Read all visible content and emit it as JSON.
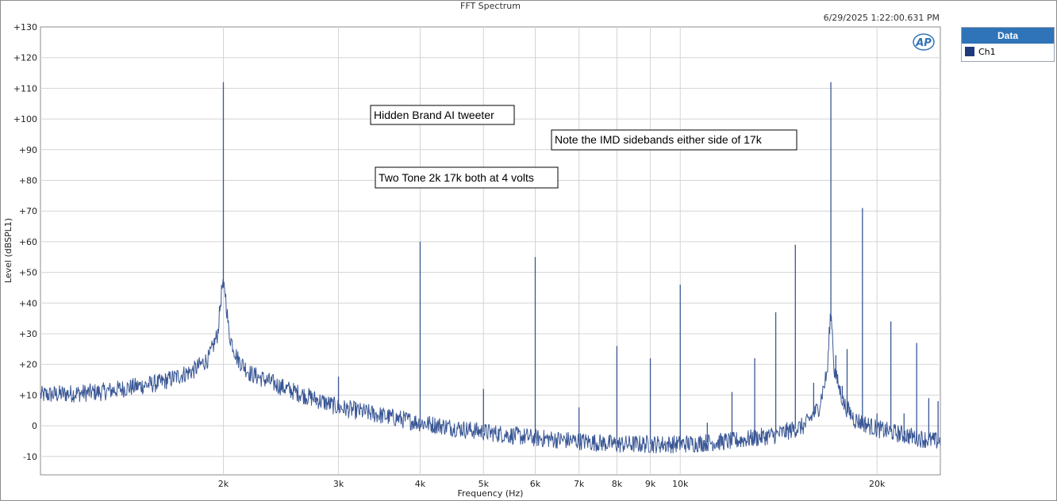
{
  "window": {
    "title": "FFT Spectrum",
    "timestamp": "6/29/2025 1:22:00.631 PM",
    "logo_text": "AP"
  },
  "legend": {
    "header": "Data",
    "items": [
      {
        "label": "Ch1",
        "color": "#1f3a7a"
      }
    ]
  },
  "annotations": [
    {
      "text": "Hidden Brand AI tweeter"
    },
    {
      "text": "Note the IMD sidebands either side of 17k"
    },
    {
      "text": "Two Tone 2k 17k both at 4 volts"
    }
  ],
  "chart_data": {
    "type": "line",
    "title": "FFT Spectrum",
    "xlabel": "Frequency (Hz)",
    "ylabel": "Level (dBSPL1)",
    "x_scale": "log",
    "xlim": [
      1050,
      25000
    ],
    "ylim": [
      -16,
      130
    ],
    "grid": true,
    "x_ticks": [
      {
        "value": 2000,
        "label": "2k"
      },
      {
        "value": 3000,
        "label": "3k"
      },
      {
        "value": 4000,
        "label": "4k"
      },
      {
        "value": 5000,
        "label": "5k"
      },
      {
        "value": 6000,
        "label": "6k"
      },
      {
        "value": 7000,
        "label": "7k"
      },
      {
        "value": 8000,
        "label": "8k"
      },
      {
        "value": 9000,
        "label": "9k"
      },
      {
        "value": 10000,
        "label": "10k"
      },
      {
        "value": 20000,
        "label": "20k"
      }
    ],
    "y_ticks": [
      {
        "value": 130,
        "label": "+130"
      },
      {
        "value": 120,
        "label": "+120"
      },
      {
        "value": 110,
        "label": "+110"
      },
      {
        "value": 100,
        "label": "+100"
      },
      {
        "value": 90,
        "label": "+90"
      },
      {
        "value": 80,
        "label": "+80"
      },
      {
        "value": 70,
        "label": "+70"
      },
      {
        "value": 60,
        "label": "+60"
      },
      {
        "value": 50,
        "label": "+50"
      },
      {
        "value": 40,
        "label": "+40"
      },
      {
        "value": 30,
        "label": "+30"
      },
      {
        "value": 20,
        "label": "+20"
      },
      {
        "value": 10,
        "label": "+10"
      },
      {
        "value": 0,
        "label": "0"
      },
      {
        "value": -10,
        "label": "-10"
      }
    ],
    "series": [
      {
        "name": "Ch1",
        "color": "#3a5795",
        "floor": [
          [
            1050,
            10
          ],
          [
            1300,
            11
          ],
          [
            1600,
            14
          ],
          [
            1800,
            18
          ],
          [
            1900,
            22
          ],
          [
            1960,
            30
          ],
          [
            1990,
            45
          ],
          [
            2010,
            45
          ],
          [
            2040,
            30
          ],
          [
            2100,
            22
          ],
          [
            2200,
            17
          ],
          [
            2500,
            12
          ],
          [
            3000,
            6
          ],
          [
            4000,
            1
          ],
          [
            5000,
            -2
          ],
          [
            6000,
            -4
          ],
          [
            7000,
            -5
          ],
          [
            8000,
            -6
          ],
          [
            10000,
            -6
          ],
          [
            12000,
            -5
          ],
          [
            14000,
            -3
          ],
          [
            15500,
            0
          ],
          [
            16300,
            6
          ],
          [
            16800,
            18
          ],
          [
            16950,
            35
          ],
          [
            17050,
            35
          ],
          [
            17200,
            18
          ],
          [
            17800,
            7
          ],
          [
            18500,
            2
          ],
          [
            20000,
            -1
          ],
          [
            22000,
            -3
          ],
          [
            24500,
            -5
          ]
        ],
        "peaks": [
          [
            2000,
            112
          ],
          [
            3000,
            16
          ],
          [
            4000,
            60
          ],
          [
            5000,
            12
          ],
          [
            6000,
            55
          ],
          [
            7000,
            6
          ],
          [
            8000,
            26
          ],
          [
            9000,
            22
          ],
          [
            10000,
            46
          ],
          [
            11000,
            1
          ],
          [
            12000,
            11
          ],
          [
            13000,
            22
          ],
          [
            14000,
            37
          ],
          [
            15000,
            59
          ],
          [
            16000,
            14
          ],
          [
            17000,
            112
          ],
          [
            17300,
            23
          ],
          [
            17700,
            13
          ],
          [
            18000,
            25
          ],
          [
            19000,
            71
          ],
          [
            20000,
            4
          ],
          [
            21000,
            34
          ],
          [
            22000,
            4
          ],
          [
            23000,
            27
          ],
          [
            24000,
            9
          ],
          [
            24800,
            8
          ]
        ]
      }
    ]
  }
}
